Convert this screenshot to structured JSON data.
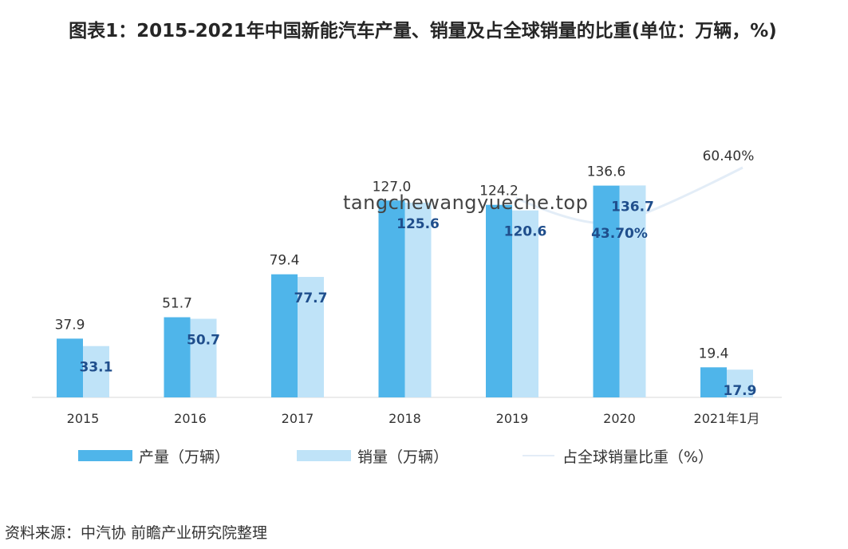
{
  "title": "图表1：2015-2021年中国新能汽车产量、销量及占全球销量的比重(单位：万辆，%)",
  "watermark": "tangchewangyueche.top",
  "source": "资料来源：中汽协 前瞻产业研究院整理",
  "chart_data": {
    "type": "bar",
    "categories": [
      "2015",
      "2016",
      "2017",
      "2018",
      "2019",
      "2020",
      "2021年1月"
    ],
    "series": [
      {
        "name": "产量（万辆）",
        "color": "#4fb5ea",
        "values": [
          37.9,
          51.7,
          79.4,
          127.0,
          124.2,
          136.6,
          19.4
        ]
      },
      {
        "name": "销量（万辆）",
        "color": "#bfe3f8",
        "values": [
          33.1,
          50.7,
          77.7,
          125.6,
          120.6,
          136.7,
          17.9
        ]
      }
    ],
    "line_series": {
      "name": "占全球销量比重（%）",
      "color": "#e3edf7",
      "points": [
        {
          "category": "2020",
          "label": "43.70%"
        },
        {
          "category": "2021年1月",
          "label": "60.40%"
        }
      ]
    },
    "label_texts": {
      "production": [
        "37.9",
        "51.7",
        "79.4",
        "127.0",
        "124.2",
        "136.6",
        "19.4"
      ],
      "sales": [
        "33.1",
        "50.7",
        "77.7",
        "125.6",
        "120.6",
        "136.7",
        "17.9"
      ]
    },
    "ylim": [
      0,
      140
    ],
    "grid": false,
    "legend_position": "bottom"
  }
}
